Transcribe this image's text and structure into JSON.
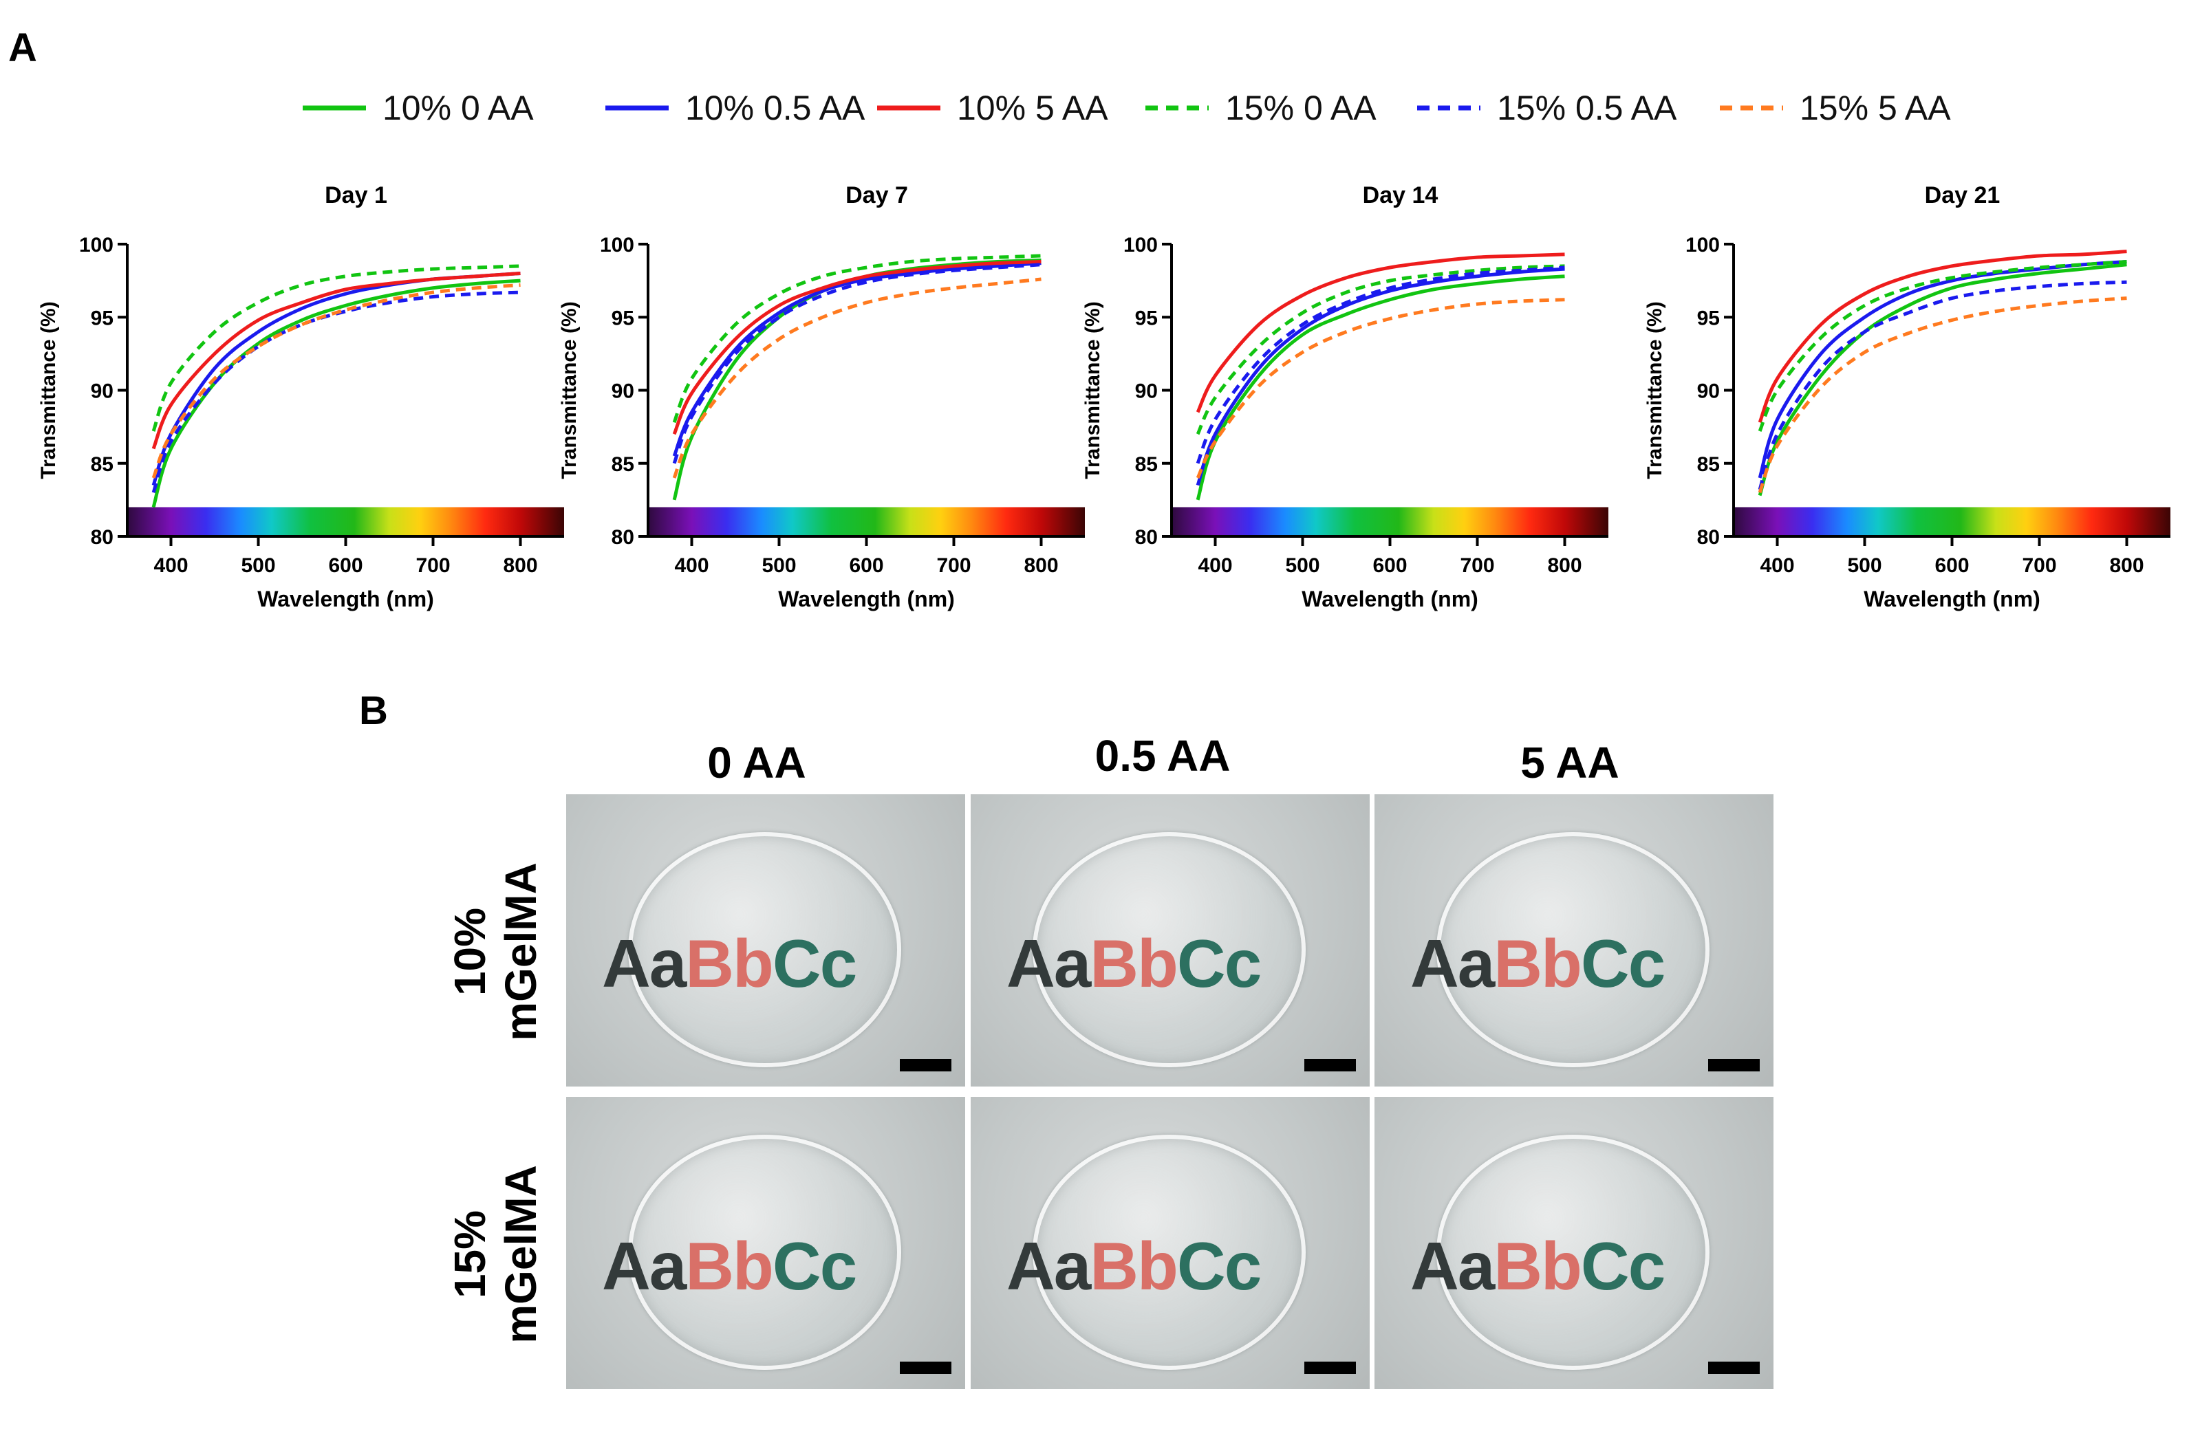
{
  "panels": {
    "a": "A",
    "b": "B"
  },
  "chart_data": {
    "type": "line",
    "legend": [
      {
        "name": "10% 0 AA",
        "color": "#11c411",
        "dash": "solid"
      },
      {
        "name": "10% 0.5 AA",
        "color": "#1a1aee",
        "dash": "solid"
      },
      {
        "name": "10% 5 AA",
        "color": "#ee1c1c",
        "dash": "solid"
      },
      {
        "name": "15% 0 AA",
        "color": "#11c411",
        "dash": "dashed"
      },
      {
        "name": "15% 0.5 AA",
        "color": "#1a1aee",
        "dash": "dashed"
      },
      {
        "name": "15% 5 AA",
        "color": "#ff7a1f",
        "dash": "dashed"
      }
    ],
    "xlabel": "Wavelength (nm)",
    "ylabel": "Transmittance (%)",
    "xlim": [
      350,
      850
    ],
    "ylim": [
      80,
      100
    ],
    "xticks": [
      400,
      500,
      600,
      700,
      800
    ],
    "yticks": [
      80,
      85,
      90,
      95,
      100
    ],
    "x": [
      380,
      400,
      450,
      500,
      550,
      600,
      650,
      700,
      750,
      800
    ],
    "charts": [
      {
        "title": "Day 1",
        "series": [
          {
            "name": "10% 0 AA",
            "values": [
              82.0,
              86.0,
              90.5,
              93.2,
              94.8,
              95.8,
              96.5,
              97.0,
              97.3,
              97.5
            ]
          },
          {
            "name": "10% 0.5 AA",
            "values": [
              83.5,
              87.0,
              91.5,
              94.0,
              95.6,
              96.6,
              97.2,
              97.6,
              97.8,
              98.0
            ]
          },
          {
            "name": "10% 5 AA",
            "values": [
              86.0,
              89.0,
              92.5,
              94.8,
              96.0,
              96.9,
              97.3,
              97.6,
              97.8,
              98.0
            ]
          },
          {
            "name": "15% 0 AA",
            "values": [
              87.2,
              90.5,
              94.0,
              96.0,
              97.2,
              97.8,
              98.1,
              98.3,
              98.4,
              98.5
            ]
          },
          {
            "name": "15% 0.5 AA",
            "values": [
              83.0,
              86.5,
              90.5,
              93.0,
              94.5,
              95.4,
              96.0,
              96.4,
              96.6,
              96.7
            ]
          },
          {
            "name": "15% 5 AA",
            "values": [
              84.0,
              87.0,
              90.8,
              93.0,
              94.5,
              95.5,
              96.2,
              96.7,
              97.0,
              97.2
            ]
          }
        ]
      },
      {
        "title": "Day 7",
        "series": [
          {
            "name": "10% 0 AA",
            "values": [
              82.5,
              86.8,
              92.0,
              95.0,
              96.8,
              97.8,
              98.3,
              98.6,
              98.8,
              98.9
            ]
          },
          {
            "name": "10% 0.5 AA",
            "values": [
              85.5,
              88.5,
              92.8,
              95.3,
              96.8,
              97.6,
              98.0,
              98.3,
              98.5,
              98.7
            ]
          },
          {
            "name": "10% 5 AA",
            "values": [
              87.0,
              89.8,
              93.5,
              95.8,
              97.0,
              97.8,
              98.2,
              98.5,
              98.7,
              98.8
            ]
          },
          {
            "name": "15% 0 AA",
            "values": [
              87.8,
              90.8,
              94.5,
              96.6,
              97.8,
              98.4,
              98.8,
              99.0,
              99.1,
              99.2
            ]
          },
          {
            "name": "15% 0.5 AA",
            "values": [
              85.0,
              88.2,
              92.5,
              95.0,
              96.5,
              97.4,
              97.9,
              98.2,
              98.4,
              98.6
            ]
          },
          {
            "name": "15% 5 AA",
            "values": [
              84.0,
              87.0,
              91.0,
              93.5,
              95.0,
              96.0,
              96.6,
              97.0,
              97.3,
              97.6
            ]
          }
        ]
      },
      {
        "title": "Day 14",
        "series": [
          {
            "name": "10% 0 AA",
            "values": [
              82.5,
              86.5,
              91.0,
              93.8,
              95.2,
              96.2,
              96.9,
              97.3,
              97.6,
              97.8
            ]
          },
          {
            "name": "10% 0.5 AA",
            "values": [
              83.5,
              87.0,
              91.5,
              94.2,
              95.8,
              96.8,
              97.4,
              97.8,
              98.1,
              98.3
            ]
          },
          {
            "name": "10% 5 AA",
            "values": [
              88.5,
              91.0,
              94.5,
              96.5,
              97.7,
              98.4,
              98.8,
              99.1,
              99.2,
              99.3
            ]
          },
          {
            "name": "15% 0 AA",
            "values": [
              87.0,
              89.5,
              93.0,
              95.3,
              96.7,
              97.5,
              97.9,
              98.2,
              98.4,
              98.5
            ]
          },
          {
            "name": "15% 0.5 AA",
            "values": [
              85.0,
              88.0,
              92.0,
              94.5,
              96.0,
              97.0,
              97.6,
              98.0,
              98.2,
              98.4
            ]
          },
          {
            "name": "15% 5 AA",
            "values": [
              84.0,
              86.5,
              90.3,
              92.6,
              94.0,
              94.9,
              95.5,
              95.9,
              96.1,
              96.2
            ]
          }
        ]
      },
      {
        "title": "Day 21",
        "series": [
          {
            "name": "10% 0 AA",
            "values": [
              82.8,
              86.5,
              91.0,
              94.0,
              95.8,
              97.0,
              97.6,
              98.0,
              98.3,
              98.6
            ]
          },
          {
            "name": "10% 0.5 AA",
            "values": [
              84.0,
              88.0,
              92.5,
              95.0,
              96.6,
              97.5,
              98.0,
              98.3,
              98.6,
              98.8
            ]
          },
          {
            "name": "10% 5 AA",
            "values": [
              87.8,
              90.8,
              94.5,
              96.6,
              97.8,
              98.5,
              98.9,
              99.2,
              99.3,
              99.5
            ]
          },
          {
            "name": "15% 0 AA",
            "values": [
              87.2,
              90.0,
              93.6,
              95.8,
              97.0,
              97.7,
              98.1,
              98.4,
              98.6,
              98.8
            ]
          },
          {
            "name": "15% 0.5 AA",
            "values": [
              83.2,
              87.0,
              91.5,
              94.0,
              95.3,
              96.3,
              96.8,
              97.1,
              97.3,
              97.4
            ]
          },
          {
            "name": "15% 5 AA",
            "values": [
              83.0,
              86.2,
              90.2,
              92.6,
              93.9,
              94.8,
              95.4,
              95.8,
              96.1,
              96.3
            ]
          }
        ]
      }
    ]
  },
  "photos": {
    "columns": [
      "0 AA",
      "0.5 AA",
      "5 AA"
    ],
    "rows": [
      {
        "label_line1": "10%",
        "label_line2": "mGelMA"
      },
      {
        "label_line1": "15%",
        "label_line2": "mGelMA"
      }
    ],
    "text_parts": [
      "Aa",
      "Bb",
      "Cc"
    ]
  }
}
